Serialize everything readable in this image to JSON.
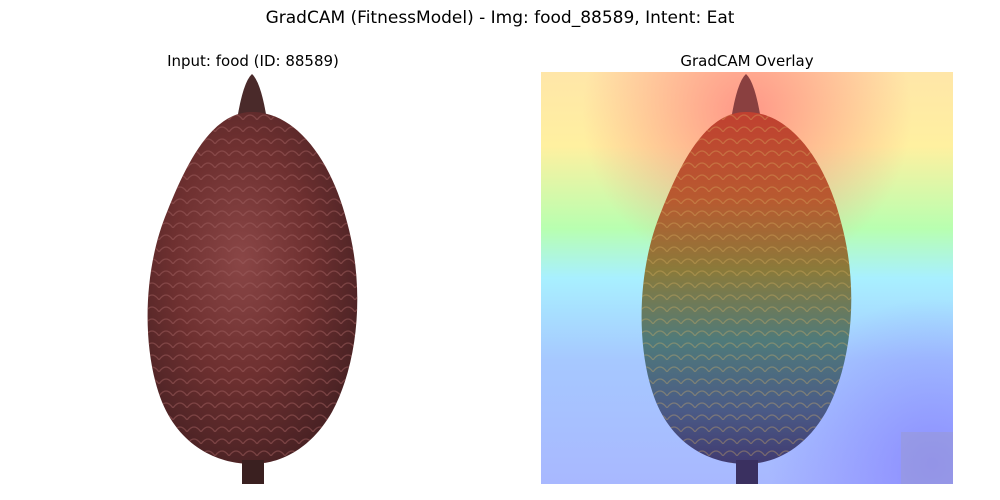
{
  "figure": {
    "suptitle": "GradCAM (FitnessModel) - Img: food_88589, Intent: Eat"
  },
  "panels": [
    {
      "title": "Input: food (ID: 88589)",
      "content": "food-image"
    },
    {
      "title": "GradCAM Overlay",
      "content": "gradcam-overlay-image"
    }
  ],
  "colors": {
    "fruit_dark": "#5a2b2b",
    "fruit_mid": "#7a3636",
    "stem": "#3a2020",
    "heat_hot": "#ff3b3b",
    "heat_warm": "#ffd36b",
    "heat_mid": "#8effd8",
    "heat_cool": "#9fc3ff",
    "heat_cold": "#8a8aff"
  }
}
